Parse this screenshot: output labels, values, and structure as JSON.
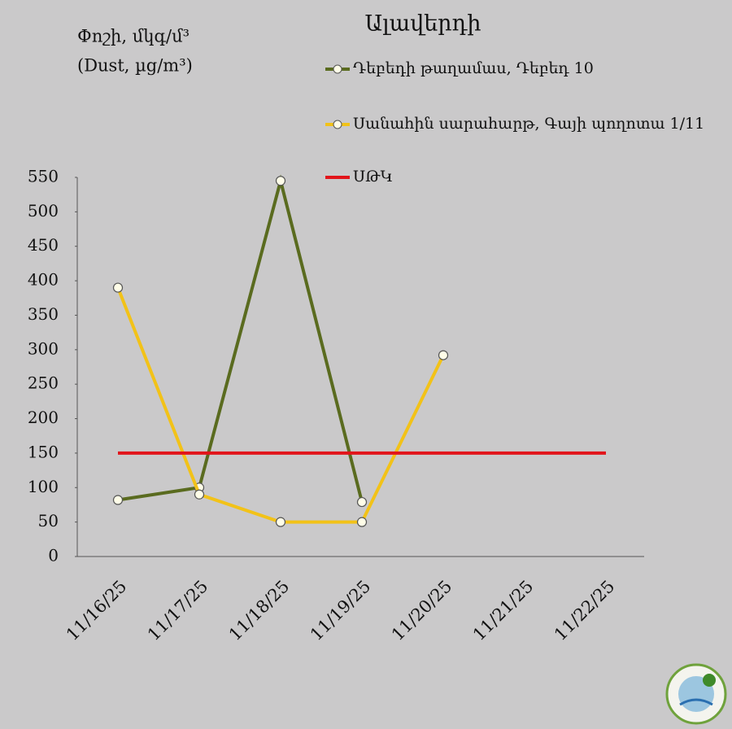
{
  "chart_data": {
    "type": "line",
    "title": "Ալավերդի",
    "y_label": [
      "Փոշի, մկգ/մ³",
      "(Dust, µg/m³)"
    ],
    "categories": [
      "11/16/25",
      "11/17/25",
      "11/18/25",
      "11/19/25",
      "11/20/25",
      "11/21/25",
      "11/22/25"
    ],
    "series": [
      {
        "name": "Դեբեդի թաղամաս, Դեբեդ 10",
        "color": "#5a6b1f",
        "marker": "circle",
        "values": [
          82,
          100,
          545,
          79,
          null,
          null,
          null
        ]
      },
      {
        "name": "Սանահին սարահարթ, Գայի պողոտա 1/11",
        "color": "#f2c218",
        "marker": "circle",
        "values": [
          390,
          90,
          50,
          50,
          292,
          null,
          null
        ]
      },
      {
        "name": "ՍԹԿ",
        "color": "#e2141a",
        "marker": "none",
        "values": [
          150,
          150,
          150,
          150,
          150,
          150,
          150
        ]
      }
    ],
    "ylim": [
      0,
      550
    ],
    "yticks": [
      0,
      50,
      100,
      150,
      200,
      250,
      300,
      350,
      400,
      450,
      500,
      550
    ]
  }
}
